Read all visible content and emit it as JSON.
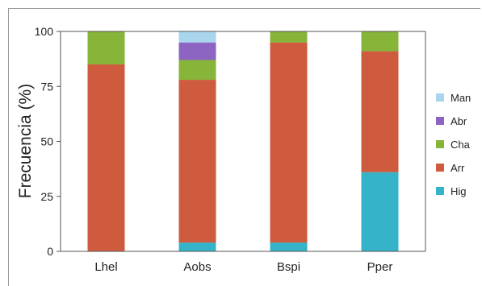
{
  "chart_data": {
    "type": "bar",
    "stacked": true,
    "categories": [
      "Lhel",
      "Aobs",
      "Bspi",
      "Pper"
    ],
    "ylabel": "Frecuencia (%)",
    "xlabel": "",
    "ylim": [
      0,
      100
    ],
    "yticks": [
      0,
      25,
      50,
      75,
      100
    ],
    "series": [
      {
        "name": "Hig",
        "color": "#35b3c9",
        "values": [
          0,
          4,
          4,
          36
        ]
      },
      {
        "name": "Arr",
        "color": "#cf5b3f",
        "values": [
          85,
          74,
          91,
          55
        ]
      },
      {
        "name": "Cha",
        "color": "#86b53a",
        "values": [
          15,
          9,
          5,
          9
        ]
      },
      {
        "name": "Abr",
        "color": "#8d64c2",
        "values": [
          0,
          8,
          0,
          0
        ]
      },
      {
        "name": "Man",
        "color": "#a9d6ee",
        "values": [
          0,
          5,
          0,
          0
        ]
      }
    ],
    "legend_order": [
      "Man",
      "Abr",
      "Cha",
      "Arr",
      "Hig"
    ],
    "legend_position": "right",
    "grid": false
  }
}
